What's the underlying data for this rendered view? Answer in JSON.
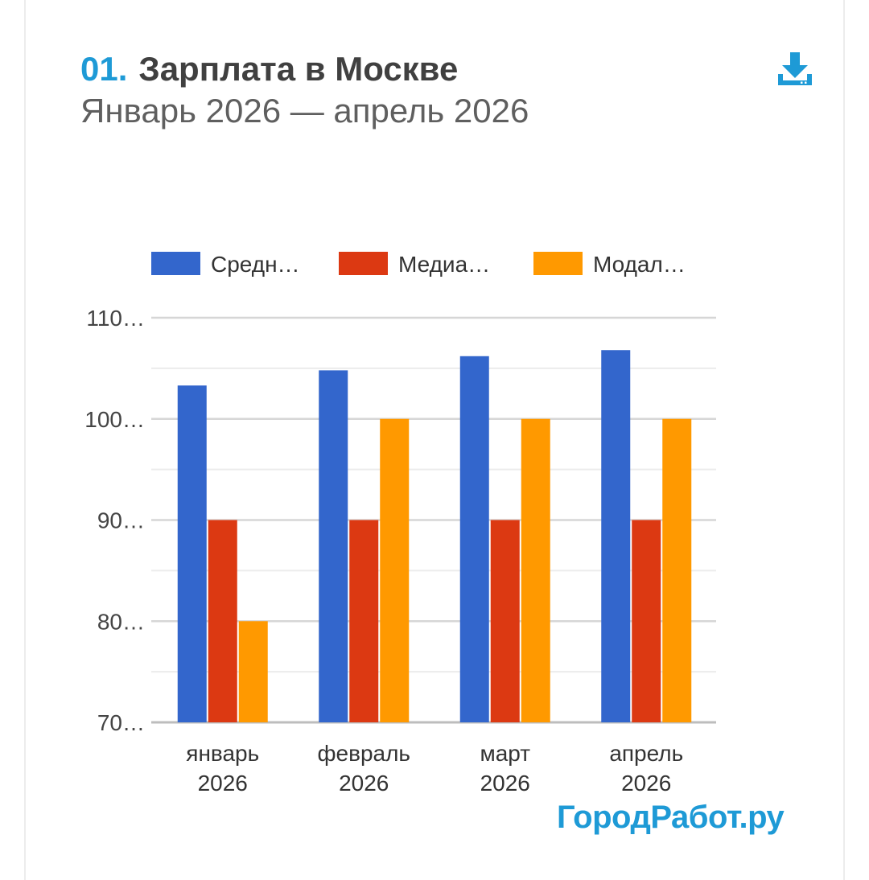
{
  "header": {
    "number": "01.",
    "title": "Зарплата в Москве",
    "subtitle": "Январь 2026 — апрель 2026"
  },
  "toolbar": {
    "download_icon": "download-icon"
  },
  "brand": {
    "text": "ГородРабот.ру"
  },
  "colors": {
    "accent": "#1e9ad6",
    "series": [
      "#3366cc",
      "#dc3912",
      "#ff9900"
    ],
    "grid_major": "#d6d6d6",
    "grid_minor": "#ececec",
    "axis": "#bdbdbd"
  },
  "chart_data": {
    "type": "bar",
    "categories": [
      [
        "январь",
        "2026"
      ],
      [
        "февраль",
        "2026"
      ],
      [
        "март",
        "2026"
      ],
      [
        "апрель",
        "2026"
      ]
    ],
    "series": [
      {
        "name": "Средн…",
        "values": [
          103.3,
          104.8,
          106.2,
          106.8
        ]
      },
      {
        "name": "Медиа…",
        "values": [
          90,
          90,
          90,
          90
        ]
      },
      {
        "name": "Модал…",
        "values": [
          80,
          100,
          100,
          100
        ]
      }
    ],
    "y_tick_labels": [
      "70…",
      "80…",
      "90…",
      "100…",
      "110…"
    ],
    "y_ticks": [
      70,
      80,
      90,
      100,
      110
    ],
    "ylim": [
      70,
      110
    ],
    "grid": true,
    "legend_position": "top"
  }
}
